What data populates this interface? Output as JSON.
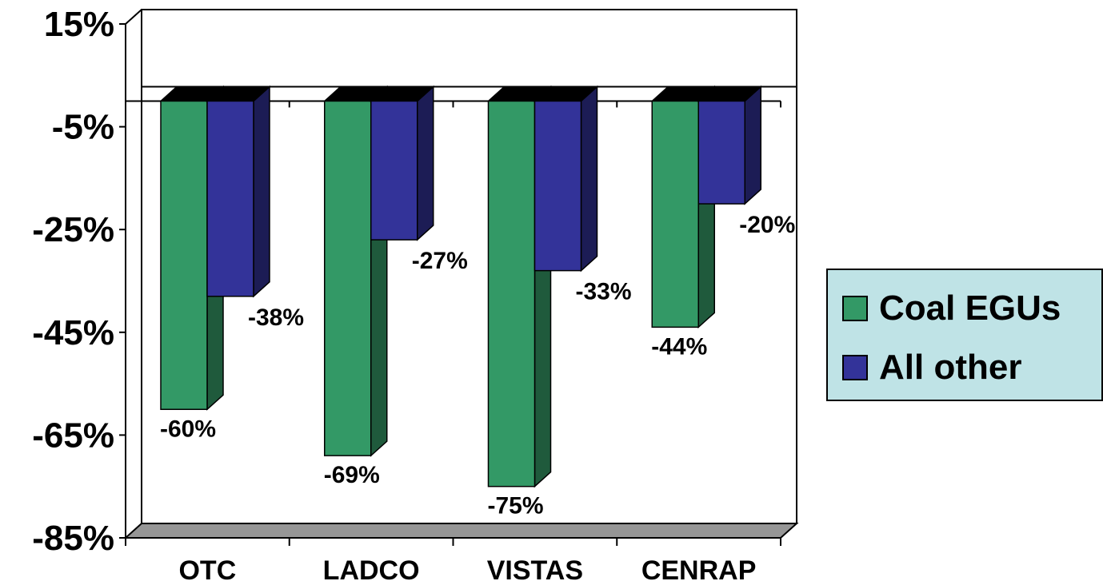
{
  "chart_data": {
    "type": "bar",
    "categories": [
      "OTC",
      "LADCO",
      "VISTAS",
      "CENRAP"
    ],
    "series": [
      {
        "name": "Coal EGUs",
        "values": [
          -60,
          -69,
          -75,
          -44
        ],
        "labels": [
          "-60%",
          "-69%",
          "-75%",
          "-44%"
        ]
      },
      {
        "name": "All other",
        "values": [
          -38,
          -27,
          -33,
          -20
        ],
        "labels": [
          "-38%",
          "-27%",
          "-33%",
          "-20%"
        ]
      }
    ],
    "ylim": [
      -85,
      15
    ],
    "yticks": [
      15,
      -5,
      -25,
      -45,
      -65,
      -85
    ],
    "ytick_labels": [
      "15%",
      "-5%",
      "-25%",
      "-45%",
      "-65%",
      "-85%"
    ],
    "title": "",
    "xlabel": "",
    "ylabel": "",
    "legend_position": "right",
    "three_d": true,
    "grid": false,
    "colors": {
      "Coal EGUs": "#339966",
      "Coal EGUs_side": "#1f5a3c",
      "All other": "#333399",
      "All other_side": "#1c1c55",
      "bar_top": "#000000",
      "floor": "#969696",
      "legend_bg": "#bfe3e6"
    }
  },
  "legend": {
    "items": [
      {
        "label": "Coal EGUs",
        "color": "#339966"
      },
      {
        "label": "All other",
        "color": "#333399"
      }
    ]
  }
}
